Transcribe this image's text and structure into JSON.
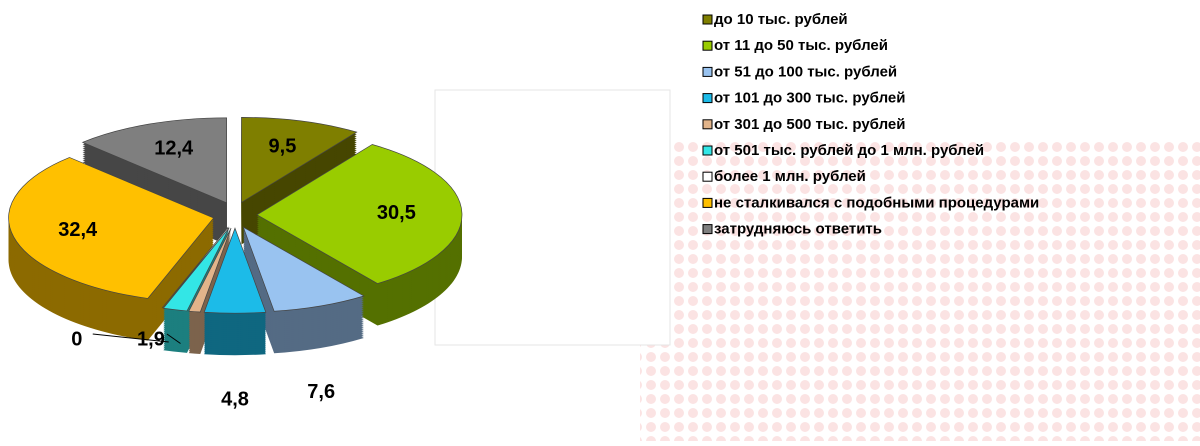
{
  "chart_data": {
    "type": "pie",
    "categories": [
      "до 10 тыс. рублей",
      "от 11 до 50 тыс. рублей",
      "от 51 до 100 тыс. рублей",
      "от 101 до 300 тыс. рублей",
      "от 301 до 500 тыс. рублей",
      "от 501 тыс. рублей до 1 млн. рублей",
      "более 1 млн. рублей",
      "не сталкивался с подобными процедурами",
      "затрудняюсь ответить"
    ],
    "values": [
      9.5,
      30.5,
      7.6,
      4.8,
      0.9,
      1.9,
      0,
      32.4,
      12.4
    ],
    "value_labels": [
      "9,5",
      "30,5",
      "7,6",
      "4,8",
      null,
      "1,9",
      "0",
      "32,4",
      "12,4"
    ],
    "colors": [
      "#7f7f00",
      "#99cc00",
      "#99c3f0",
      "#1cbbe8",
      "#e2b48a",
      "#33e6e6",
      "#ffffff",
      "#ffc000",
      "#7f7f7f"
    ],
    "legend": "right"
  }
}
